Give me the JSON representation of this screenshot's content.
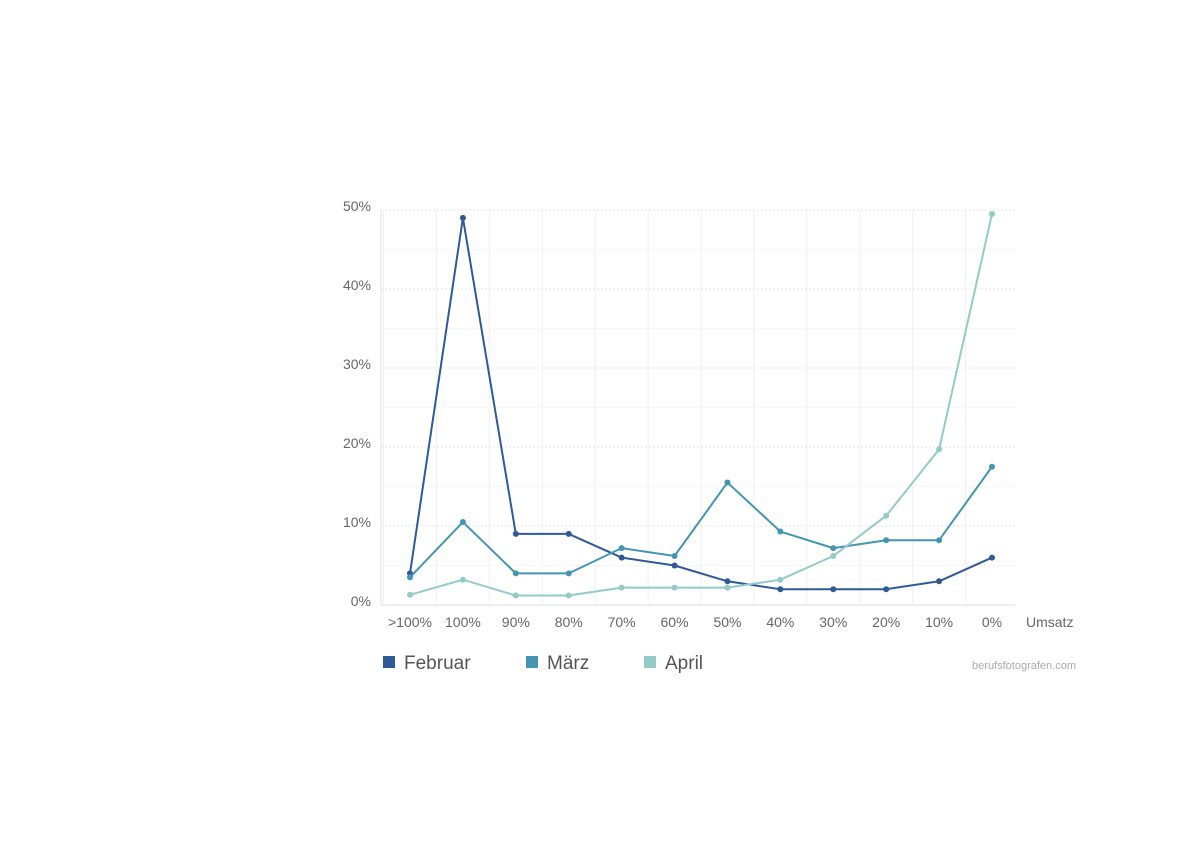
{
  "chart_data": {
    "type": "line",
    "categories": [
      ">100%",
      "100%",
      "90%",
      "80%",
      "70%",
      "60%",
      "50%",
      "40%",
      "30%",
      "20%",
      "10%",
      "0%"
    ],
    "xlabel": "Umsatz",
    "ylabel": "",
    "ylim": [
      0,
      50
    ],
    "yticks": [
      0,
      10,
      20,
      30,
      40,
      50
    ],
    "ytick_labels": [
      "0%",
      "10%",
      "20%",
      "30%",
      "40%",
      "50%"
    ],
    "grid": true,
    "legend_position": "bottom-left",
    "series": [
      {
        "name": "Februar",
        "color": "#2e5a97",
        "values": [
          4,
          49,
          9,
          9,
          6,
          5,
          3,
          2,
          2,
          2,
          3,
          6
        ]
      },
      {
        "name": "März",
        "color": "#4495b2",
        "values": [
          3.5,
          10.5,
          4,
          4,
          7.2,
          6.2,
          15.5,
          9.3,
          7.2,
          8.2,
          8.2,
          17.5
        ]
      },
      {
        "name": "April",
        "color": "#92cbc8",
        "values": [
          1.3,
          3.2,
          1.2,
          1.2,
          2.2,
          2.2,
          2.2,
          3.2,
          6.2,
          11.3,
          19.7,
          49.5
        ]
      }
    ]
  },
  "credit": "berufsfotografen.com"
}
